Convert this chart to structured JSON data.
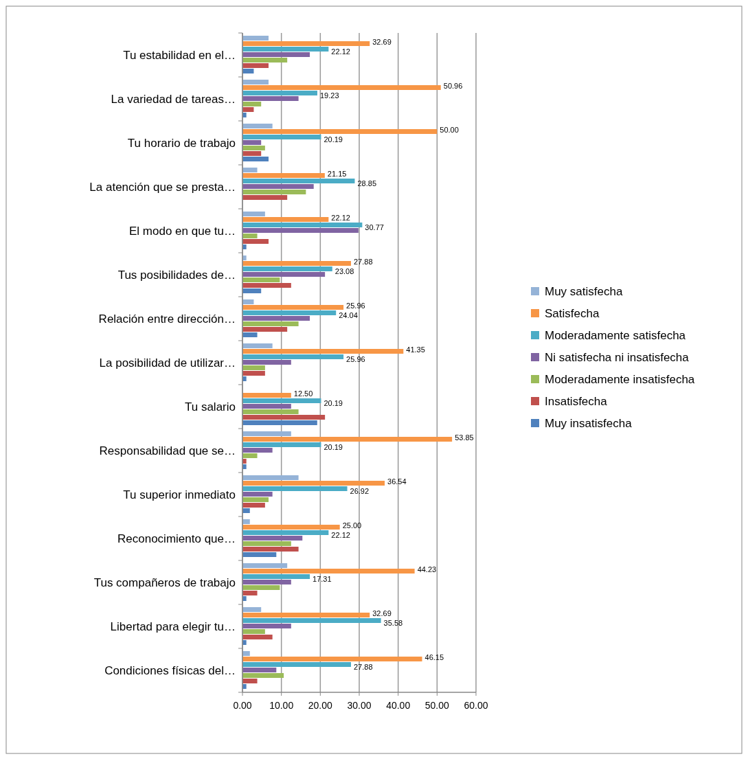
{
  "chart_data": {
    "type": "bar",
    "orientation": "horizontal",
    "categories": [
      "Tu estabilidad en el…",
      "La variedad de tareas…",
      "Tu horario de trabajo",
      "La atención que se presta…",
      "El modo en que tu…",
      "Tus posibilidades de…",
      "Relación entre dirección…",
      "La posibilidad de utilizar…",
      "Tu salario",
      "Responsabilidad que se…",
      "Tu superior inmediato",
      "Reconocimiento que…",
      "Tus compañeros de trabajo",
      "Libertad para elegir tu…",
      "Condiciones físicas del…"
    ],
    "series": [
      {
        "name": "Muy satisfecha",
        "color": "#95b3d7",
        "values": [
          6.7,
          6.7,
          7.7,
          3.8,
          5.8,
          1.0,
          2.9,
          7.7,
          0,
          12.5,
          14.4,
          1.9,
          11.5,
          4.8,
          1.9
        ]
      },
      {
        "name": "Satisfecha",
        "color": "#f79646",
        "values": [
          32.69,
          50.96,
          50.0,
          21.15,
          22.12,
          27.88,
          25.96,
          41.35,
          12.5,
          53.85,
          36.54,
          25.0,
          44.23,
          32.69,
          46.15
        ],
        "value_labels": [
          "32.69",
          "50.96",
          "50.00",
          "21.15",
          "22.12",
          "27.88",
          "25.96",
          "41.35",
          "12.50",
          "53.85",
          "36.54",
          "25.00",
          "44.23",
          "32.69",
          "46.15"
        ]
      },
      {
        "name": "Moderadamente satisfecha",
        "color": "#4bacc6",
        "values": [
          22.12,
          19.23,
          20.19,
          28.85,
          30.77,
          23.08,
          24.04,
          25.96,
          20.19,
          20.19,
          26.92,
          22.12,
          17.31,
          35.58,
          27.88
        ],
        "value_labels": [
          "22.12",
          "19.23",
          "20.19",
          "28.85",
          "30.77",
          "23.08",
          "24.04",
          "25.96",
          "20.19",
          "20.19",
          "26.92",
          "22.12",
          "17.31",
          "35.58",
          "27.88"
        ]
      },
      {
        "name": "Ni satisfecha ni insatisfecha",
        "color": "#8064a2",
        "values": [
          17.3,
          14.4,
          4.8,
          18.3,
          29.8,
          21.2,
          17.3,
          12.5,
          12.5,
          7.7,
          7.7,
          15.4,
          12.5,
          12.5,
          8.7
        ]
      },
      {
        "name": "Moderadamente insatisfecha",
        "color": "#9bbb59",
        "values": [
          11.5,
          4.8,
          5.8,
          16.3,
          3.8,
          9.6,
          14.4,
          5.8,
          14.4,
          3.8,
          6.7,
          12.5,
          9.6,
          5.8,
          10.6
        ]
      },
      {
        "name": "Insatisfecha",
        "color": "#c0504d",
        "values": [
          6.7,
          2.9,
          4.8,
          11.5,
          6.7,
          12.5,
          11.5,
          5.8,
          21.2,
          1.0,
          5.8,
          14.4,
          3.8,
          7.7,
          3.8
        ]
      },
      {
        "name": "Muy insatisfecha",
        "color": "#4f81bd",
        "values": [
          2.9,
          1.0,
          6.7,
          0,
          1.0,
          4.8,
          3.8,
          1.0,
          19.2,
          1.0,
          1.9,
          8.7,
          1.0,
          1.0,
          1.0
        ]
      }
    ],
    "xlim": [
      0,
      60
    ],
    "xticks": [
      {
        "value": 0,
        "label": "0.00"
      },
      {
        "value": 10,
        "label": "10.00"
      },
      {
        "value": 20,
        "label": "20.00"
      },
      {
        "value": 30,
        "label": "30.00"
      },
      {
        "value": 40,
        "label": "40.00"
      },
      {
        "value": 50,
        "label": "50.00"
      },
      {
        "value": 60,
        "label": "60.00"
      }
    ],
    "grid": "x",
    "legend": "right"
  }
}
